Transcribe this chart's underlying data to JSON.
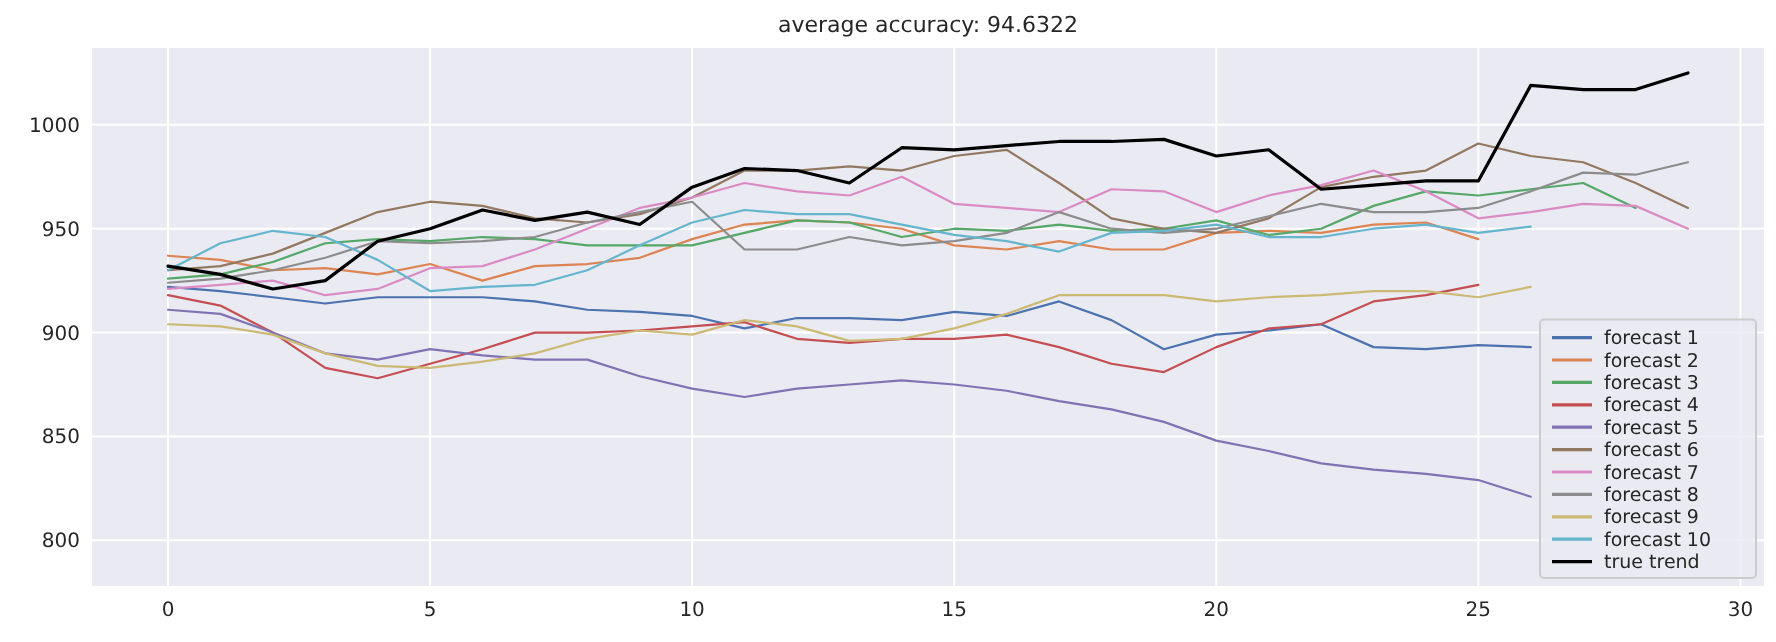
{
  "chart_data": {
    "type": "line",
    "title": "average accuracy: 94.6322",
    "x": [
      0,
      1,
      2,
      3,
      4,
      5,
      6,
      7,
      8,
      9,
      10,
      11,
      12,
      13,
      14,
      15,
      16,
      17,
      18,
      19,
      20,
      21,
      22,
      23,
      24,
      25,
      26,
      27,
      28,
      29
    ],
    "xlim": [
      -1.45,
      30.45
    ],
    "xticks": [
      0,
      5,
      10,
      15,
      20,
      25,
      30
    ],
    "ylim": [
      778,
      1037
    ],
    "yticks": [
      800,
      850,
      900,
      950,
      1000
    ],
    "grid": true,
    "legend": "bottom right",
    "line_style": "solid",
    "series": [
      {
        "name": "forecast 1",
        "color": "#4c72b0",
        "values": [
          922,
          920,
          917,
          914,
          917,
          917,
          917,
          915,
          911,
          910,
          908,
          902,
          907,
          907,
          906,
          910,
          908,
          915,
          906,
          892,
          899,
          901,
          904,
          893,
          892,
          894,
          893,
          null,
          null,
          null
        ]
      },
      {
        "name": "forecast 2",
        "color": "#dd8452",
        "values": [
          937,
          935,
          930,
          931,
          928,
          933,
          925,
          932,
          933,
          936,
          945,
          952,
          954,
          953,
          950,
          942,
          940,
          944,
          940,
          940,
          948,
          949,
          948,
          952,
          953,
          945,
          null,
          null,
          null,
          null
        ]
      },
      {
        "name": "forecast 3",
        "color": "#55a868",
        "values": [
          926,
          928,
          934,
          943,
          945,
          944,
          946,
          945,
          942,
          942,
          942,
          948,
          954,
          953,
          946,
          950,
          949,
          952,
          949,
          950,
          954,
          947,
          950,
          961,
          968,
          966,
          969,
          972,
          960,
          null
        ]
      },
      {
        "name": "forecast 4",
        "color": "#c44e52",
        "values": [
          918,
          913,
          900,
          883,
          878,
          885,
          892,
          900,
          900,
          901,
          903,
          905,
          897,
          895,
          897,
          897,
          899,
          893,
          885,
          881,
          893,
          902,
          904,
          915,
          918,
          923,
          null,
          null,
          null,
          null
        ]
      },
      {
        "name": "forecast 5",
        "color": "#8172b3",
        "values": [
          911,
          909,
          900,
          890,
          887,
          892,
          889,
          887,
          887,
          879,
          873,
          869,
          873,
          875,
          877,
          875,
          872,
          867,
          863,
          857,
          848,
          843,
          837,
          834,
          832,
          829,
          821,
          null,
          null,
          null
        ]
      },
      {
        "name": "forecast 6",
        "color": "#937860",
        "values": [
          930,
          932,
          938,
          948,
          958,
          963,
          961,
          955,
          953,
          957,
          965,
          978,
          978,
          980,
          978,
          985,
          988,
          972,
          955,
          950,
          948,
          955,
          970,
          975,
          978,
          991,
          985,
          982,
          972,
          960
        ]
      },
      {
        "name": "forecast 7",
        "color": "#da8bc3",
        "values": [
          921,
          923,
          925,
          918,
          921,
          931,
          932,
          940,
          950,
          960,
          965,
          972,
          968,
          966,
          975,
          962,
          960,
          958,
          969,
          968,
          958,
          966,
          971,
          978,
          968,
          955,
          958,
          962,
          961,
          950
        ]
      },
      {
        "name": "forecast 8",
        "color": "#8c8c8c",
        "values": [
          924,
          926,
          930,
          936,
          944,
          943,
          944,
          946,
          953,
          958,
          963,
          940,
          940,
          946,
          942,
          944,
          948,
          958,
          950,
          948,
          950,
          956,
          962,
          958,
          958,
          960,
          968,
          977,
          976,
          982
        ]
      },
      {
        "name": "forecast 9",
        "color": "#ccb974",
        "values": [
          904,
          903,
          899,
          890,
          884,
          883,
          886,
          890,
          897,
          901,
          899,
          906,
          903,
          896,
          897,
          902,
          909,
          918,
          918,
          918,
          915,
          917,
          918,
          920,
          920,
          917,
          922,
          null,
          null,
          null
        ]
      },
      {
        "name": "forecast 10",
        "color": "#64b5cd",
        "values": [
          930,
          943,
          949,
          946,
          935,
          920,
          922,
          923,
          930,
          942,
          953,
          959,
          957,
          957,
          952,
          947,
          944,
          939,
          948,
          949,
          952,
          946,
          946,
          950,
          952,
          948,
          951,
          null,
          null,
          null
        ]
      },
      {
        "name": "true trend",
        "color": "#000000",
        "values": [
          932,
          928,
          921,
          925,
          944,
          950,
          959,
          954,
          958,
          952,
          970,
          979,
          978,
          972,
          989,
          988,
          990,
          992,
          992,
          993,
          985,
          988,
          969,
          971,
          973,
          973,
          1019,
          1017,
          1017,
          1025
        ]
      }
    ]
  }
}
